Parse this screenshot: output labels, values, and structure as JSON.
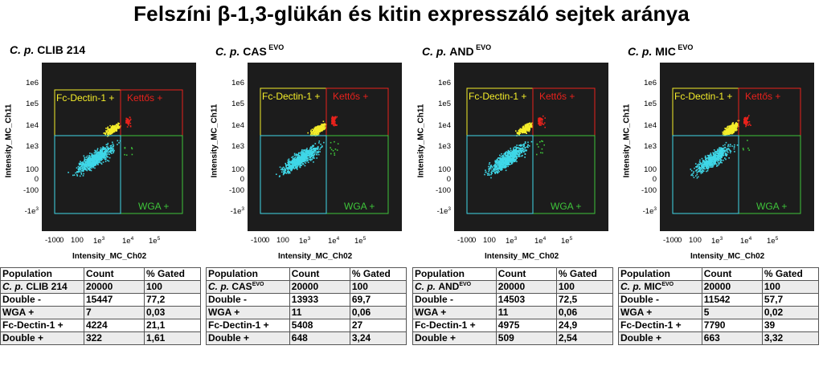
{
  "title": "Felszíni β-1,3-glükán és kitin expresszáló sejtek aránya",
  "colors": {
    "plot_bg": "#1c1c1c",
    "yellow": "#f5ee2a",
    "red": "#e8221c",
    "green": "#3ec43a",
    "cyan": "#3fd8e8"
  },
  "axes": {
    "xlabel": "Intensity_MC_Ch02",
    "ylabel": "Intensity_MC_Ch11",
    "y_ticks": [
      {
        "base": "1e6",
        "exp": ""
      },
      {
        "base": "1e5",
        "exp": ""
      },
      {
        "base": "1e4",
        "exp": ""
      },
      {
        "base": "1e3",
        "exp": ""
      },
      {
        "base": "100",
        "exp": ""
      },
      {
        "base": "0",
        "exp": ""
      },
      {
        "base": "-100",
        "exp": ""
      },
      {
        "base": "-1e",
        "exp": "3"
      }
    ],
    "x_ticks": [
      {
        "base": "-100",
        "exp": ""
      },
      {
        "base": "0",
        "exp": ""
      },
      {
        "base": "100",
        "exp": ""
      },
      {
        "base": "1e",
        "exp": "3"
      },
      {
        "base": "1e",
        "exp": "4"
      },
      {
        "base": "1e",
        "exp": "5"
      }
    ]
  },
  "quadrant_labels": {
    "fc_dectin": "Fc-Dectin-1 +",
    "double_pos": "Kettős +",
    "wga": "WGA +"
  },
  "table_header": {
    "population": "Population",
    "count": "Count",
    "gated": "% Gated"
  },
  "chart_data": [
    {
      "type": "scatter",
      "title": "C. p. CLIB 214",
      "species": "C. p.",
      "strain": "CLIB 214",
      "superscript": "",
      "xlabel": "Intensity_MC_Ch02",
      "ylabel": "Intensity_MC_Ch11",
      "scale": "biexponential",
      "xlim": [
        -1000,
        500000
      ],
      "ylim": [
        -1000,
        1000000
      ],
      "quadrants": [
        "Fc-Dectin-1 +",
        "Kettős +",
        "WGA +",
        "Double -"
      ],
      "rows": [
        {
          "population": "C. p. CLIB 214",
          "population_species": "C. p.",
          "population_strain": "CLIB 214",
          "sup": "",
          "count": "20000",
          "gated": "100"
        },
        {
          "population": "Double -",
          "population_species": "",
          "population_strain": "Double -",
          "sup": "",
          "count": "15447",
          "gated": "77,2"
        },
        {
          "population": "WGA +",
          "population_species": "",
          "population_strain": "WGA +",
          "sup": "",
          "count": "7",
          "gated": "0,03"
        },
        {
          "population": "Fc-Dectin-1 +",
          "population_species": "",
          "population_strain": "Fc-Dectin-1 +",
          "sup": "",
          "count": "4224",
          "gated": "21,1"
        },
        {
          "population": "Double +",
          "population_species": "",
          "population_strain": "Double +",
          "sup": "",
          "count": "322",
          "gated": "1,61"
        }
      ]
    },
    {
      "type": "scatter",
      "title": "C. p. CAS EVO",
      "species": "C. p.",
      "strain": "CAS",
      "superscript": "EVO",
      "xlabel": "Intensity_MC_Ch02",
      "ylabel": "Intensity_MC_Ch11",
      "scale": "biexponential",
      "xlim": [
        -1000,
        500000
      ],
      "ylim": [
        -1000,
        1000000
      ],
      "quadrants": [
        "Fc-Dectin-1 +",
        "Kettős +",
        "WGA +",
        "Double -"
      ],
      "rows": [
        {
          "population": "C. p. CAS EVO",
          "population_species": "C. p.",
          "population_strain": "CAS",
          "sup": "EVO",
          "count": "20000",
          "gated": "100"
        },
        {
          "population": "Double -",
          "population_species": "",
          "population_strain": "Double -",
          "sup": "",
          "count": "13933",
          "gated": "69,7"
        },
        {
          "population": "WGA +",
          "population_species": "",
          "population_strain": "WGA +",
          "sup": "",
          "count": "11",
          "gated": "0,06"
        },
        {
          "population": "Fc-Dectin-1 +",
          "population_species": "",
          "population_strain": "Fc-Dectin-1 +",
          "sup": "",
          "count": "5408",
          "gated": "27"
        },
        {
          "population": "Double +",
          "population_species": "",
          "population_strain": "Double +",
          "sup": "",
          "count": "648",
          "gated": "3,24"
        }
      ]
    },
    {
      "type": "scatter",
      "title": "C. p. AND EVO",
      "species": "C. p.",
      "strain": "AND",
      "superscript": "EVO",
      "xlabel": "Intensity_MC_Ch02",
      "ylabel": "Intensity_MC_Ch11",
      "scale": "biexponential",
      "xlim": [
        -1000,
        500000
      ],
      "ylim": [
        -1000,
        1000000
      ],
      "quadrants": [
        "Fc-Dectin-1 +",
        "Kettős +",
        "WGA +",
        "Double -"
      ],
      "rows": [
        {
          "population": "C. p. AND EVO",
          "population_species": "C. p.",
          "population_strain": "AND",
          "sup": "EVO",
          "count": "20000",
          "gated": "100"
        },
        {
          "population": "Double -",
          "population_species": "",
          "population_strain": "Double -",
          "sup": "",
          "count": "14503",
          "gated": "72,5"
        },
        {
          "population": "WGA +",
          "population_species": "",
          "population_strain": "WGA +",
          "sup": "",
          "count": "11",
          "gated": "0,06"
        },
        {
          "population": "Fc-Dectin-1 +",
          "population_species": "",
          "population_strain": "Fc-Dectin-1 +",
          "sup": "",
          "count": "4975",
          "gated": "24,9"
        },
        {
          "population": "Double +",
          "population_species": "",
          "population_strain": "Double +",
          "sup": "",
          "count": "509",
          "gated": "2,54"
        }
      ]
    },
    {
      "type": "scatter",
      "title": "C. p. MIC EVO",
      "species": "C. p.",
      "strain": "MIC",
      "superscript": "EVO",
      "xlabel": "Intensity_MC_Ch02",
      "ylabel": "Intensity_MC_Ch11",
      "scale": "biexponential",
      "xlim": [
        -1000,
        500000
      ],
      "ylim": [
        -1000,
        1000000
      ],
      "quadrants": [
        "Fc-Dectin-1 +",
        "Kettős +",
        "WGA +",
        "Double -"
      ],
      "rows": [
        {
          "population": "C. p. MIC EVO",
          "population_species": "C. p.",
          "population_strain": "MIC",
          "sup": "EVO",
          "count": "20000",
          "gated": "100"
        },
        {
          "population": "Double -",
          "population_species": "",
          "population_strain": "Double -",
          "sup": "",
          "count": "11542",
          "gated": "57,7"
        },
        {
          "population": "WGA +",
          "population_species": "",
          "population_strain": "WGA +",
          "sup": "",
          "count": "5",
          "gated": "0,02"
        },
        {
          "population": "Fc-Dectin-1 +",
          "population_species": "",
          "population_strain": "Fc-Dectin-1 +",
          "sup": "",
          "count": "7790",
          "gated": "39"
        },
        {
          "population": "Double +",
          "population_species": "",
          "population_strain": "Double +",
          "sup": "",
          "count": "663",
          "gated": "3,32"
        }
      ]
    }
  ]
}
